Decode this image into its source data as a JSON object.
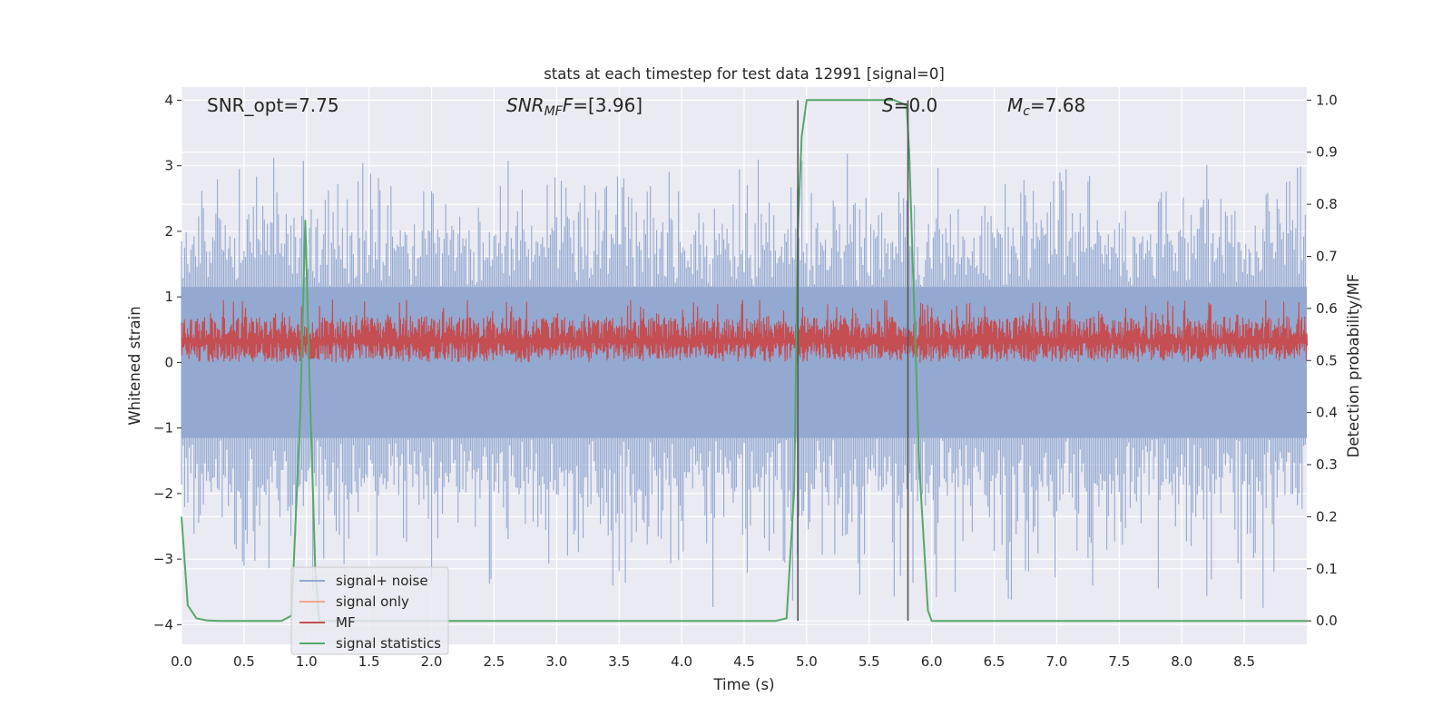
{
  "chart_data": {
    "type": "line",
    "title": "stats at each timestep for test data 12991 [signal=0]",
    "xlabel": "Time (s)",
    "ylabel_left": "Whitened strain",
    "ylabel_right": "Detection probability/MF",
    "xlim": [
      0.0,
      9.0
    ],
    "ylim_left": [
      -4.3,
      4.2
    ],
    "ylim_right": [
      -0.045,
      1.025
    ],
    "x_ticks": [
      "0.0",
      "0.5",
      "1.0",
      "1.5",
      "2.0",
      "2.5",
      "3.0",
      "3.5",
      "4.0",
      "4.5",
      "5.0",
      "5.5",
      "6.0",
      "6.5",
      "7.0",
      "7.5",
      "8.0",
      "8.5"
    ],
    "x_tick_values": [
      0.0,
      0.5,
      1.0,
      1.5,
      2.0,
      2.5,
      3.0,
      3.5,
      4.0,
      4.5,
      5.0,
      5.5,
      6.0,
      6.5,
      7.0,
      7.5,
      8.0,
      8.5
    ],
    "y_left_ticks": [
      "−4",
      "−3",
      "−2",
      "−1",
      "0",
      "1",
      "2",
      "3",
      "4"
    ],
    "y_left_tick_values": [
      -4,
      -3,
      -2,
      -1,
      0,
      1,
      2,
      3,
      4
    ],
    "y_right_ticks": [
      "0.0",
      "0.1",
      "0.2",
      "0.3",
      "0.4",
      "0.5",
      "0.6",
      "0.7",
      "0.8",
      "0.9",
      "1.0"
    ],
    "y_right_tick_values": [
      0.0,
      0.1,
      0.2,
      0.3,
      0.4,
      0.5,
      0.6,
      0.7,
      0.8,
      0.9,
      1.0
    ],
    "annotations": {
      "snr_opt": "SNR_opt=7.75",
      "snr_mf_name": "SNR",
      "snr_mf_sub": "MF",
      "snr_mf_val": "=[3.96]",
      "s_name": "S",
      "s_val": "=0.0",
      "mc_name": "M",
      "mc_sub": "c",
      "mc_val": "=7.68"
    },
    "vertical_lines_x": [
      4.93,
      5.81
    ],
    "series": [
      {
        "name": "signal+ noise",
        "color": "#94a9d1",
        "description": "noise band",
        "band_range": [
          -1.6,
          1.6
        ],
        "spike_range": [
          -3.8,
          3.4
        ]
      },
      {
        "name": "signal only",
        "color": "#f2a88b",
        "values": []
      },
      {
        "name": "MF",
        "color": "#c44e52",
        "band_range": [
          0.0,
          0.97
        ]
      },
      {
        "name": "signal statistics",
        "color": "#55a868",
        "axis": "right",
        "x": [
          0.0,
          0.05,
          0.12,
          0.2,
          0.3,
          0.5,
          0.8,
          0.88,
          0.95,
          0.99,
          1.02,
          1.07,
          1.1,
          1.15,
          1.3,
          2.0,
          3.0,
          4.0,
          4.75,
          4.84,
          4.9,
          4.93,
          4.96,
          5.0,
          5.5,
          5.7,
          5.8,
          5.82,
          5.9,
          5.97,
          6.0,
          7.0,
          8.0,
          9.0
        ],
        "y": [
          0.2,
          0.03,
          0.005,
          0.001,
          0.0,
          0.0,
          0.0,
          0.01,
          0.4,
          0.77,
          0.5,
          0.1,
          0.0,
          0.0,
          0.0,
          0.0,
          0.0,
          0.0,
          0.0,
          0.005,
          0.25,
          0.75,
          0.93,
          1.0,
          1.0,
          1.0,
          0.99,
          0.9,
          0.3,
          0.02,
          0.0,
          0.0,
          0.0,
          0.0
        ]
      }
    ],
    "legend": {
      "position": "lower-left",
      "items": [
        {
          "label": "signal+ noise",
          "color": "#94a9d1"
        },
        {
          "label": "signal only",
          "color": "#f2a88b"
        },
        {
          "label": "MF",
          "color": "#c44e52"
        },
        {
          "label": "signal statistics",
          "color": "#55a868"
        }
      ]
    }
  }
}
